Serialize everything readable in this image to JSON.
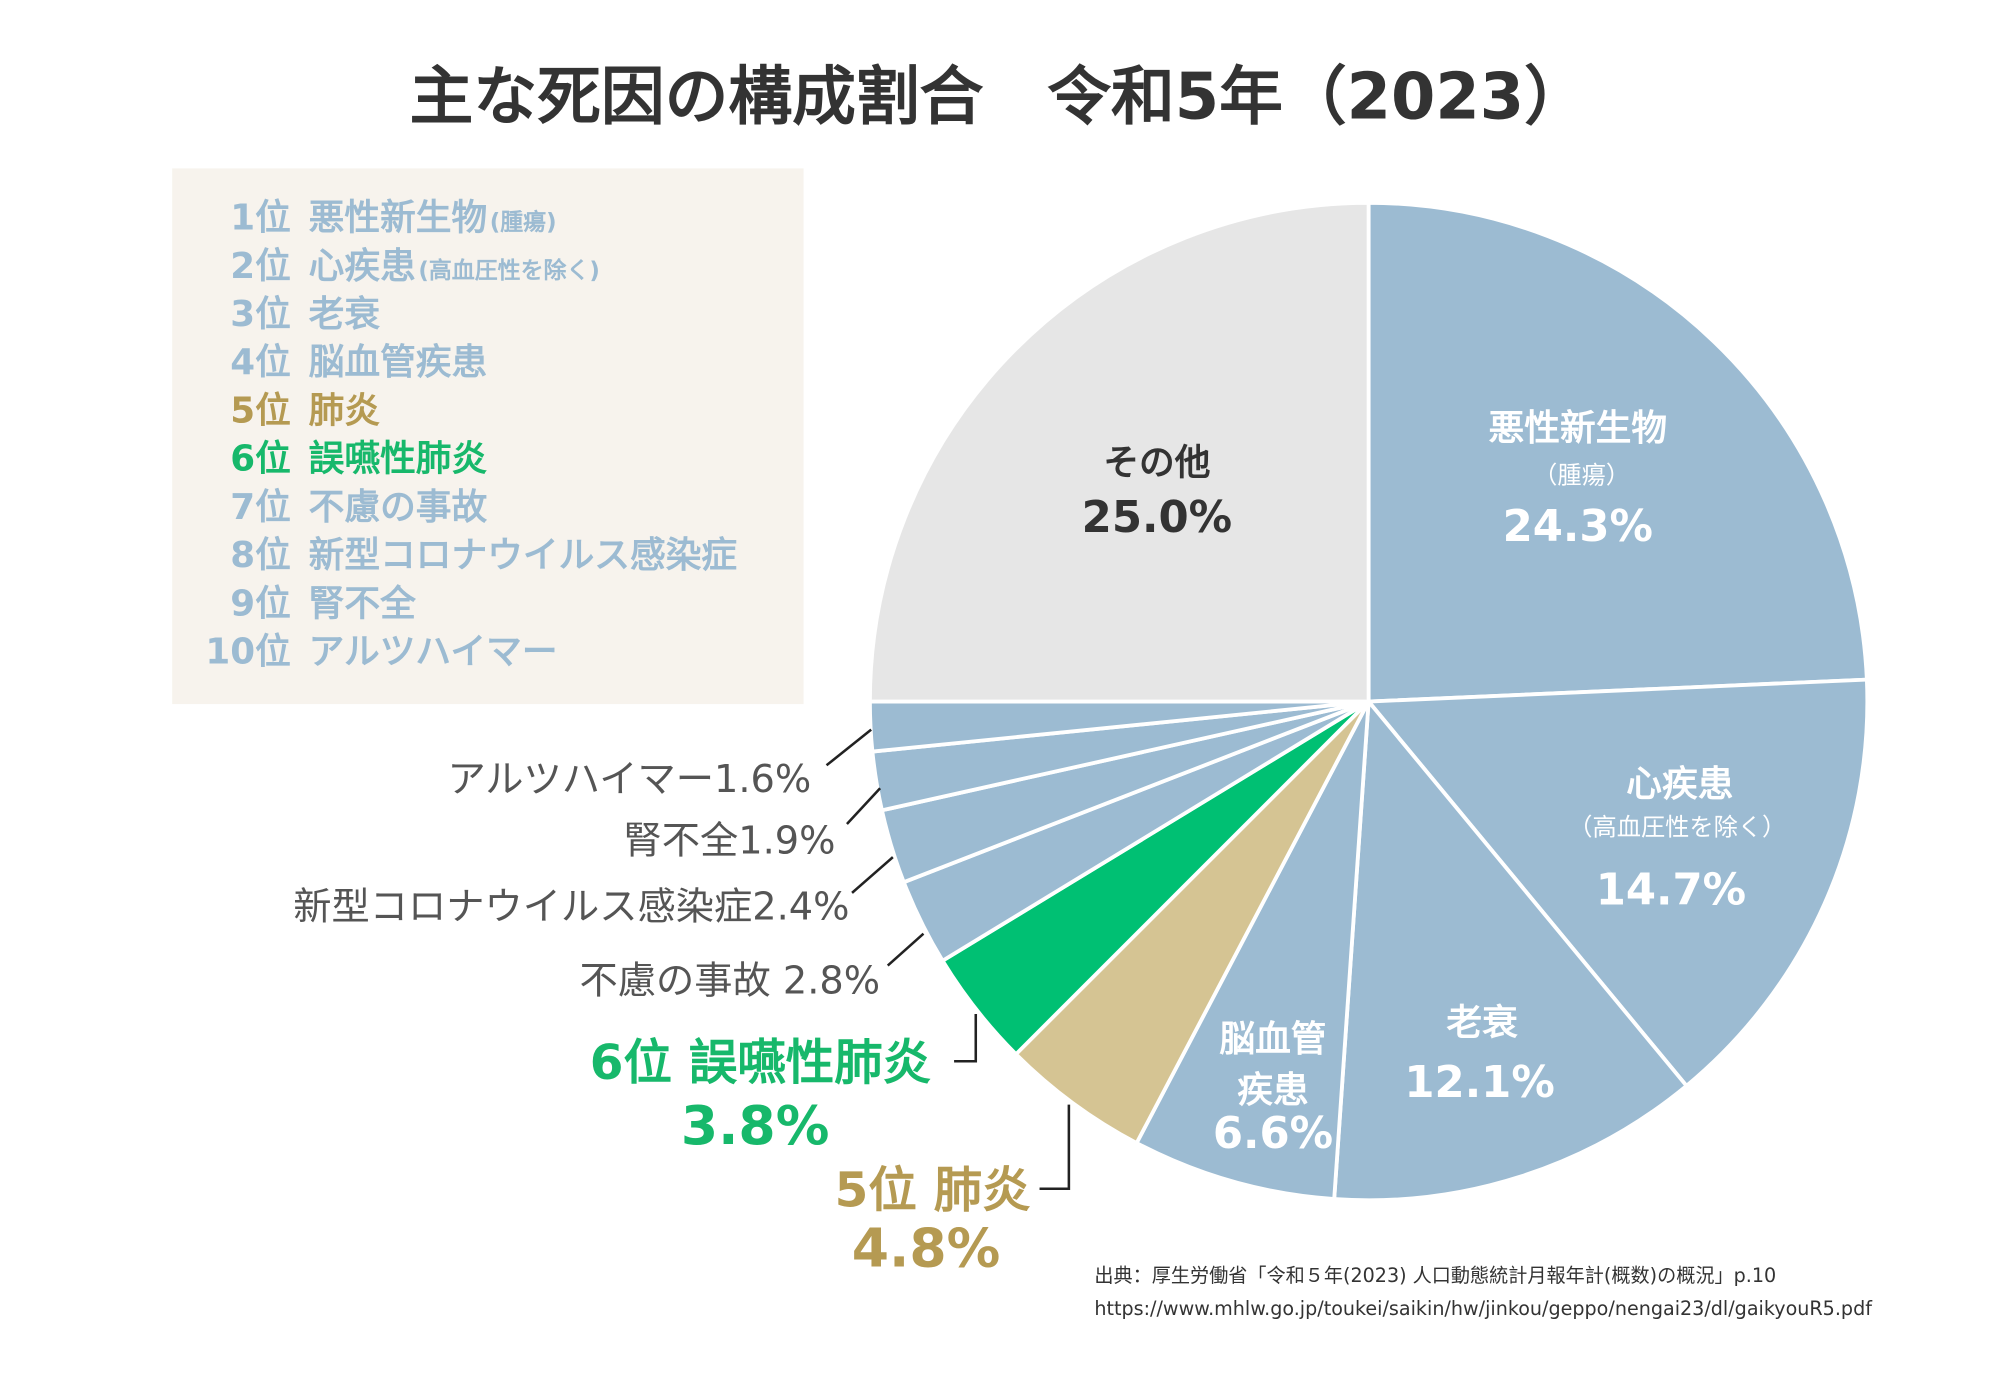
{
  "colors": {
    "background": "#ffffff",
    "legend_background": "#f7f3ed",
    "title": "#333333",
    "source_text": "#333333",
    "leader_line": "#222222",
    "slice_border": "#ffffff"
  },
  "chart_data": {
    "type": "pie",
    "title": "主な死因の構成割合　令和5年（2023）",
    "legend_position": "top-left",
    "slices": [
      {
        "rank": "1位",
        "name": "悪性新生物",
        "note": "(腫瘍)",
        "value": 24.3,
        "color": "#9cbbd2",
        "legend_color": "#9cbbd2",
        "label_color": "#ffffff",
        "label_lines": [
          "悪性新生物"
        ],
        "label_note": "（腫瘍）",
        "value_text": "24.3%"
      },
      {
        "rank": "2位",
        "name": "心疾患",
        "note": "(高血圧性を除く)",
        "value": 14.7,
        "color": "#9cbbd2",
        "legend_color": "#9cbbd2",
        "label_color": "#ffffff",
        "label_lines": [
          "心疾患"
        ],
        "label_note": "（高血圧性を除く）",
        "value_text": "14.7%"
      },
      {
        "rank": "3位",
        "name": "老衰",
        "value": 12.1,
        "color": "#9cbbd2",
        "legend_color": "#9cbbd2",
        "label_color": "#ffffff",
        "label_lines": [
          "老衰"
        ],
        "value_text": "12.1%"
      },
      {
        "rank": "4位",
        "name": "脳血管疾患",
        "value": 6.6,
        "color": "#9cbbd2",
        "legend_color": "#9cbbd2",
        "label_color": "#ffffff",
        "label_lines": [
          "脳血管",
          "疾患"
        ],
        "value_text": "6.6%"
      },
      {
        "rank": "5位",
        "name": "肺炎",
        "value": 4.8,
        "color": "#d5c493",
        "legend_color": "#b59a52",
        "label_color": "#b59a52",
        "label_lines": [
          "5位 肺炎"
        ],
        "value_text": "4.8%"
      },
      {
        "rank": "6位",
        "name": "誤嚥性肺炎",
        "value": 3.8,
        "color": "#00c073",
        "legend_color": "#17b86b",
        "label_color": "#17b86b",
        "label_lines": [
          "6位 誤嚥性肺炎"
        ],
        "value_text": "3.8%"
      },
      {
        "rank": "7位",
        "name": "不慮の事故",
        "value": 2.8,
        "color": "#9cbbd2",
        "legend_color": "#9cbbd2",
        "label_color": "#555555",
        "label_text": "不慮の事故 2.8%"
      },
      {
        "rank": "8位",
        "name": "新型コロナウイルス感染症",
        "value": 2.4,
        "color": "#9cbbd2",
        "legend_color": "#9cbbd2",
        "label_color": "#555555",
        "label_text": "新型コロナウイルス感染症2.4%"
      },
      {
        "rank": "9位",
        "name": "腎不全",
        "value": 1.9,
        "color": "#9cbbd2",
        "legend_color": "#9cbbd2",
        "label_color": "#555555",
        "label_text": "腎不全1.9%"
      },
      {
        "rank": "10位",
        "name": "アルツハイマー",
        "value": 1.6,
        "color": "#9cbbd2",
        "legend_color": "#9cbbd2",
        "label_color": "#555555",
        "label_text": "アルツハイマー1.6%"
      },
      {
        "name": "その他",
        "value": 25.0,
        "color": "#e6e6e6",
        "label_color": "#333333",
        "value_text": "25.0%"
      }
    ]
  },
  "source": {
    "citation": "出典：厚生労働省「令和５年(2023) 人口動態統計月報年計(概数)の概況」p.10",
    "url": "https://www.mhlw.go.jp/toukei/saikin/hw/jinkou/geppo/nengai23/dl/gaikyouR5.pdf"
  }
}
